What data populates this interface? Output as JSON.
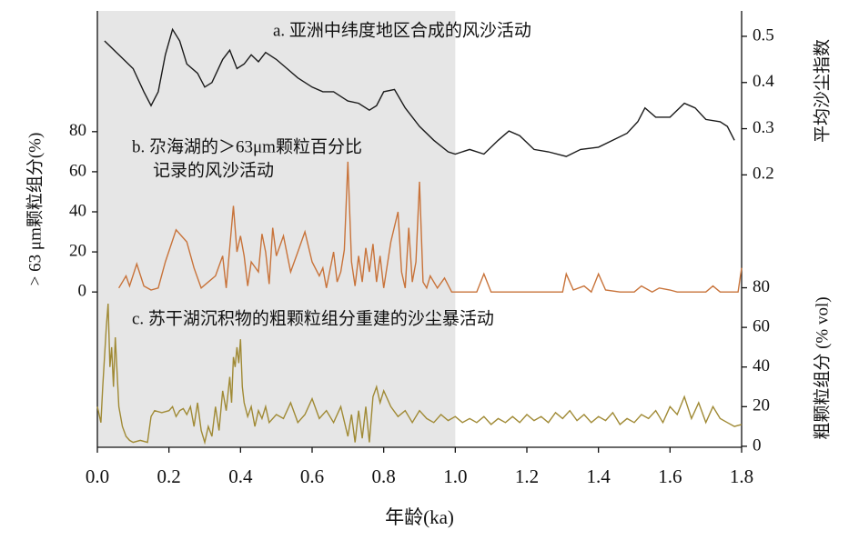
{
  "chart_data": [
    {
      "type": "line",
      "title": [
        "a. 亚洲中纬度地区合成的风沙活动"
      ],
      "ylabel": "平均沙尘指数",
      "yaxis_side": "right",
      "color": "#1a1a1a",
      "xlim": [
        0,
        1.8
      ],
      "ylim": [
        0.185,
        0.555
      ],
      "yticks": [
        0.2,
        0.3,
        0.4,
        0.5
      ],
      "x": [
        0.02,
        0.06,
        0.1,
        0.13,
        0.15,
        0.17,
        0.19,
        0.21,
        0.23,
        0.25,
        0.28,
        0.3,
        0.32,
        0.35,
        0.37,
        0.39,
        0.41,
        0.43,
        0.45,
        0.47,
        0.5,
        0.53,
        0.56,
        0.6,
        0.63,
        0.66,
        0.7,
        0.73,
        0.76,
        0.78,
        0.8,
        0.83,
        0.86,
        0.9,
        0.94,
        0.98,
        1.0,
        1.04,
        1.08,
        1.12,
        1.15,
        1.18,
        1.22,
        1.26,
        1.31,
        1.35,
        1.4,
        1.44,
        1.48,
        1.51,
        1.53,
        1.56,
        1.6,
        1.64,
        1.67,
        1.7,
        1.74,
        1.76,
        1.78
      ],
      "values": [
        0.49,
        0.46,
        0.43,
        0.38,
        0.35,
        0.38,
        0.46,
        0.515,
        0.49,
        0.44,
        0.42,
        0.39,
        0.4,
        0.45,
        0.47,
        0.43,
        0.44,
        0.46,
        0.445,
        0.465,
        0.45,
        0.43,
        0.41,
        0.39,
        0.38,
        0.38,
        0.36,
        0.355,
        0.34,
        0.35,
        0.38,
        0.385,
        0.345,
        0.305,
        0.275,
        0.25,
        0.245,
        0.255,
        0.245,
        0.275,
        0.295,
        0.285,
        0.255,
        0.25,
        0.24,
        0.255,
        0.26,
        0.275,
        0.29,
        0.315,
        0.345,
        0.325,
        0.325,
        0.355,
        0.345,
        0.32,
        0.315,
        0.305,
        0.275
      ]
    },
    {
      "type": "line",
      "title": [
        "b. 尕海湖的＞63μm颗粒百分比",
        "记录的风沙活动"
      ],
      "ylabel": "> 63 μm颗粒组分(%)",
      "yaxis_side": "left",
      "color": "#c8733a",
      "xlim": [
        0,
        1.8
      ],
      "ylim": [
        -4,
        84
      ],
      "yticks": [
        0,
        20,
        40,
        60,
        80
      ],
      "x": [
        0.06,
        0.08,
        0.09,
        0.11,
        0.13,
        0.15,
        0.17,
        0.19,
        0.22,
        0.25,
        0.27,
        0.29,
        0.31,
        0.33,
        0.35,
        0.36,
        0.38,
        0.39,
        0.4,
        0.41,
        0.42,
        0.43,
        0.45,
        0.46,
        0.47,
        0.48,
        0.49,
        0.5,
        0.52,
        0.54,
        0.56,
        0.58,
        0.6,
        0.62,
        0.63,
        0.64,
        0.66,
        0.67,
        0.68,
        0.69,
        0.7,
        0.71,
        0.72,
        0.73,
        0.74,
        0.75,
        0.76,
        0.77,
        0.78,
        0.79,
        0.8,
        0.82,
        0.84,
        0.85,
        0.86,
        0.87,
        0.88,
        0.89,
        0.9,
        0.91,
        0.92,
        0.93,
        0.95,
        0.97,
        0.99,
        1.02,
        1.06,
        1.08,
        1.1,
        1.2,
        1.3,
        1.31,
        1.33,
        1.36,
        1.38,
        1.4,
        1.42,
        1.46,
        1.5,
        1.52,
        1.55,
        1.57,
        1.6,
        1.62,
        1.7,
        1.72,
        1.74,
        1.79,
        1.8
      ],
      "values": [
        2,
        8,
        3,
        14,
        3,
        1,
        2,
        15,
        31,
        25,
        12,
        2,
        5,
        8,
        18,
        2,
        43,
        20,
        28,
        18,
        3,
        15,
        10,
        29,
        20,
        4,
        32,
        18,
        28,
        10,
        20,
        30,
        15,
        8,
        12,
        2,
        20,
        5,
        10,
        21,
        65,
        15,
        3,
        18,
        5,
        22,
        10,
        24,
        5,
        18,
        2,
        25,
        40,
        10,
        2,
        32,
        5,
        15,
        55,
        5,
        2,
        8,
        2,
        7,
        0,
        0,
        0,
        9,
        0,
        0,
        0,
        9,
        1,
        3,
        0,
        9,
        1,
        0,
        0,
        3,
        0,
        2,
        1,
        0,
        0,
        3,
        0,
        0,
        12
      ]
    },
    {
      "type": "line",
      "title": [
        "c. 苏干湖沉积物的粗颗粒组分重建的沙尘暴活动"
      ],
      "ylabel": "粗颗粒组分 (% vol)",
      "yaxis_side": "right",
      "color": "#a08a35",
      "xlim": [
        0,
        1.8
      ],
      "ylim": [
        -0.5,
        83
      ],
      "yticks": [
        0,
        20,
        40,
        60,
        80
      ],
      "xlabel": "年龄(ka)",
      "shaded_xrange": [
        0,
        1.0
      ],
      "xticks": [
        {
          "value": 0,
          "label": "0.0"
        },
        0.2,
        0.4,
        0.6,
        0.8,
        {
          "value": 1,
          "label": "1.0"
        },
        1.2,
        1.4,
        1.6,
        1.8
      ],
      "x": [
        0,
        0.01,
        0.015,
        0.025,
        0.03,
        0.035,
        0.04,
        0.045,
        0.05,
        0.055,
        0.06,
        0.07,
        0.08,
        0.09,
        0.1,
        0.12,
        0.14,
        0.15,
        0.16,
        0.18,
        0.2,
        0.21,
        0.22,
        0.23,
        0.24,
        0.25,
        0.26,
        0.27,
        0.28,
        0.29,
        0.3,
        0.31,
        0.32,
        0.33,
        0.34,
        0.35,
        0.36,
        0.37,
        0.375,
        0.38,
        0.385,
        0.39,
        0.395,
        0.4,
        0.405,
        0.41,
        0.42,
        0.43,
        0.44,
        0.45,
        0.46,
        0.47,
        0.48,
        0.5,
        0.52,
        0.54,
        0.56,
        0.58,
        0.6,
        0.62,
        0.64,
        0.66,
        0.68,
        0.7,
        0.71,
        0.72,
        0.73,
        0.74,
        0.75,
        0.76,
        0.77,
        0.78,
        0.79,
        0.8,
        0.82,
        0.84,
        0.86,
        0.88,
        0.9,
        0.92,
        0.94,
        0.96,
        0.98,
        1.0,
        1.02,
        1.04,
        1.06,
        1.08,
        1.1,
        1.12,
        1.14,
        1.16,
        1.18,
        1.2,
        1.22,
        1.24,
        1.26,
        1.28,
        1.3,
        1.32,
        1.34,
        1.36,
        1.38,
        1.4,
        1.42,
        1.44,
        1.46,
        1.48,
        1.5,
        1.52,
        1.54,
        1.56,
        1.58,
        1.6,
        1.62,
        1.64,
        1.66,
        1.68,
        1.7,
        1.72,
        1.74,
        1.76,
        1.78,
        1.8
      ],
      "values": [
        20,
        12,
        30,
        60,
        72,
        40,
        50,
        30,
        55,
        38,
        20,
        10,
        5,
        3,
        2,
        3,
        2,
        15,
        18,
        17,
        18,
        20,
        15,
        18,
        19,
        16,
        20,
        10,
        22,
        8,
        2,
        10,
        5,
        20,
        8,
        28,
        18,
        35,
        22,
        45,
        40,
        50,
        42,
        54,
        30,
        22,
        15,
        20,
        10,
        18,
        14,
        20,
        12,
        16,
        14,
        22,
        12,
        16,
        24,
        14,
        18,
        12,
        20,
        5,
        16,
        2,
        18,
        4,
        20,
        2,
        25,
        30,
        22,
        28,
        20,
        15,
        18,
        12,
        18,
        14,
        12,
        16,
        13,
        15,
        12,
        14,
        12,
        15,
        11,
        14,
        12,
        15,
        12,
        16,
        13,
        15,
        12,
        17,
        14,
        18,
        13,
        16,
        12,
        15,
        13,
        17,
        11,
        14,
        12,
        16,
        14,
        18,
        12,
        20,
        16,
        25,
        14,
        22,
        12,
        20,
        14,
        12,
        10,
        11
      ]
    }
  ]
}
